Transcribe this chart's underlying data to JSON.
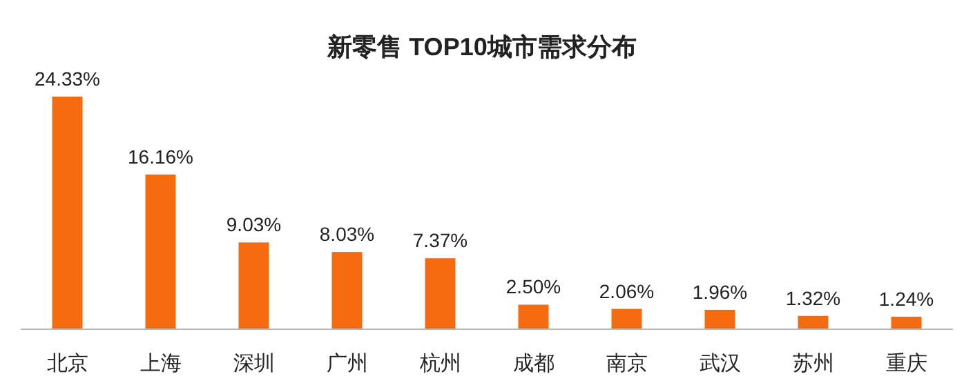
{
  "chart_data": {
    "type": "bar",
    "title": "新零售 TOP10城市需求分布",
    "categories": [
      "北京",
      "上海",
      "深圳",
      "广州",
      "杭州",
      "成都",
      "南京",
      "武汉",
      "苏州",
      "重庆"
    ],
    "values": [
      24.33,
      16.16,
      9.03,
      8.03,
      7.37,
      2.5,
      2.06,
      1.96,
      1.32,
      1.24
    ],
    "value_labels": [
      "24.33%",
      "16.16%",
      "9.03%",
      "8.03%",
      "7.37%",
      "2.50%",
      "2.06%",
      "1.96%",
      "1.32%",
      "1.24%"
    ],
    "color": "#f46b10"
  }
}
